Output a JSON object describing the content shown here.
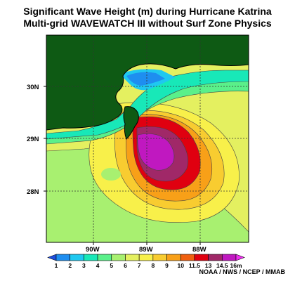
{
  "title": {
    "line1": "Significant Wave Height (m) during Hurricane Katrina",
    "line2": "Multi-grid WAVEWATCH III without Surf Zone Physics"
  },
  "axes": {
    "lat_labels": [
      "30N",
      "29N",
      "28N"
    ],
    "lon_labels": [
      "90W",
      "89W",
      "88W"
    ]
  },
  "colorbar": {
    "labels": [
      "1",
      "2",
      "3",
      "4",
      "5",
      "6",
      "7",
      "8",
      "9",
      "10",
      "11.5",
      "13",
      "14.5",
      "16m"
    ],
    "colors": [
      "#1f4fe0",
      "#1e8ef0",
      "#1fc8f0",
      "#18e8b8",
      "#5af08a",
      "#a8f070",
      "#e4f060",
      "#f8f04a",
      "#f8cc30",
      "#f8a018",
      "#f06010",
      "#e00010",
      "#a02868",
      "#c018c0",
      "#f030f0"
    ]
  },
  "map": {
    "land_color": "#0e5a14",
    "palette": {
      "c2": "#1e8ef0",
      "c3": "#1fc8f0",
      "c4": "#18e8b8",
      "c5": "#5af08a",
      "c6": "#a8f070",
      "c7": "#e4f060",
      "c8": "#f8f04a",
      "c9": "#f8cc30",
      "c10": "#f8a018",
      "c11": "#e00010",
      "c12": "#a02868",
      "c13": "#c018c0"
    }
  },
  "credit": "NOAA / NWS / NCEP / MMAB"
}
